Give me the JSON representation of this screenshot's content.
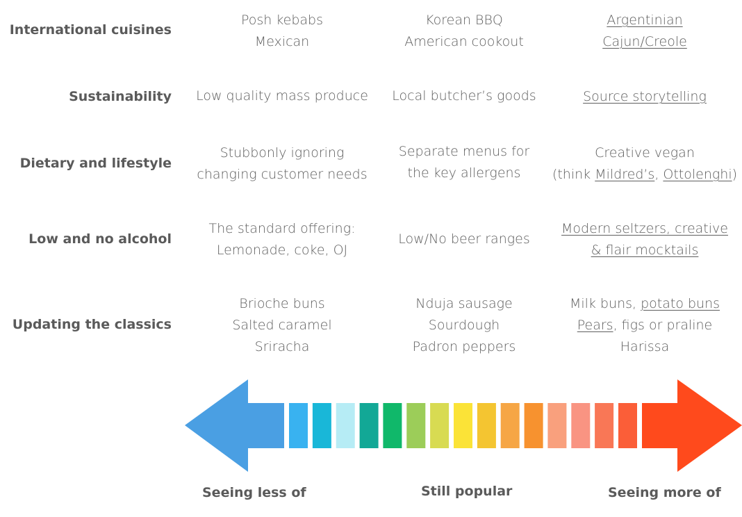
{
  "rows": [
    {
      "label": "International cuisines",
      "less": [
        "Posh kebabs",
        "Mexican"
      ],
      "popular": [
        "Korean BBQ",
        "American cookout"
      ],
      "more": [
        "Argentinian",
        "Cajun/Creole"
      ]
    },
    {
      "label": "Sustainability",
      "less": [
        "Low quality mass produce"
      ],
      "popular": [
        "Local butcher’s goods"
      ],
      "more": [
        "Source storytelling"
      ]
    },
    {
      "label": "Dietary and lifestyle",
      "less": [
        "Stubbonly ignoring",
        "changing customer needs"
      ],
      "popular": [
        "Separate menus for",
        "the key allergens"
      ],
      "more": {
        "line1": "Creative vegan",
        "line2_prefix": "(think ",
        "link1": "Mildred’s",
        "sep": ", ",
        "link2": "Ottolenghi",
        "line2_suffix": ")"
      }
    },
    {
      "label": "Low and no alcohol",
      "less": [
        "The standard offering:",
        "Lemonade, coke, OJ"
      ],
      "popular": [
        "Low/No beer ranges"
      ],
      "more": [
        "Modern seltzers, creative",
        "& flair mocktails"
      ]
    },
    {
      "label": "Updating the classics",
      "less": [
        "Brioche buns",
        "Salted caramel",
        "Sriracha"
      ],
      "popular": [
        "Nduja sausage",
        "Sourdough",
        "Padron peppers"
      ],
      "more": {
        "line1_prefix": "Milk buns, ",
        "line1_link": "potato buns",
        "line2_link": "Pears",
        "line2_suffix": ", figs or praline",
        "line3": "Harissa"
      }
    }
  ],
  "scale": {
    "left_label": "Seeing less of",
    "middle_label": "Still popular",
    "right_label": "Seeing more of",
    "left_arrow_color": "#4a9fe3",
    "right_arrow_color": "#ff4a1c",
    "segment_colors": [
      "#39b2f0",
      "#19b7d8",
      "#b6ecf5",
      "#12a896",
      "#10b86a",
      "#9ccd59",
      "#d8db52",
      "#fbe337",
      "#f4c531",
      "#f6a645",
      "#f7922f",
      "#f9a07d",
      "#f99482",
      "#f97756",
      "#fb5e38"
    ]
  }
}
